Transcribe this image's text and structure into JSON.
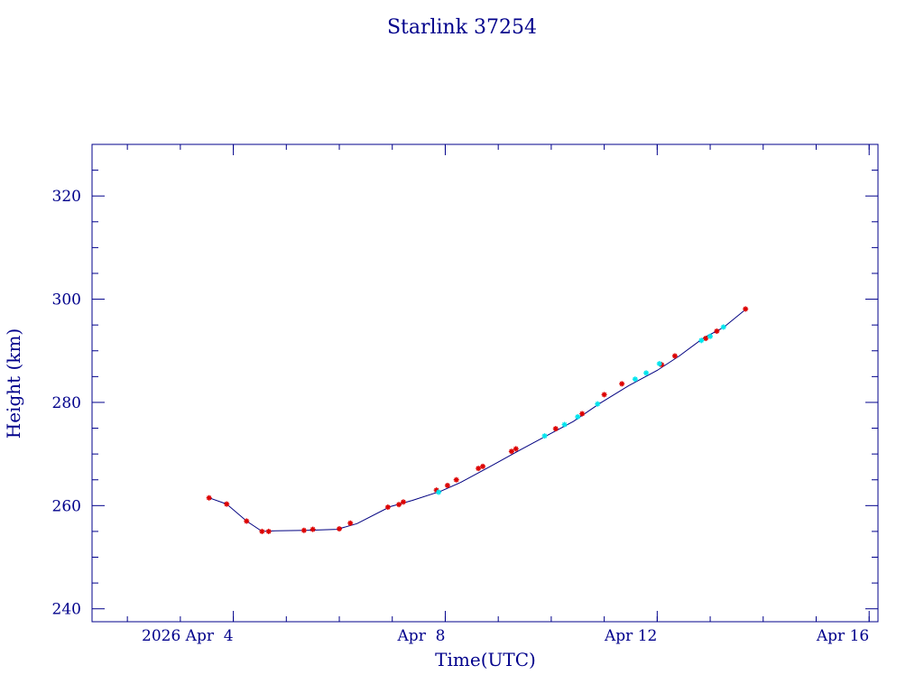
{
  "chart_data": {
    "type": "line",
    "title": "Starlink 37254",
    "xlabel": "Time(UTC)",
    "ylabel": "Height (km)",
    "x_domain": [
      "2026-04-01T08:00:00",
      "2026-04-16T04:00:00"
    ],
    "ylim": [
      237.5,
      330
    ],
    "x_ticks": [
      {
        "label": "2026 Apr  4",
        "date": "2026-04-04T00:00:00"
      },
      {
        "label": "Apr  8",
        "date": "2026-04-08T00:00:00"
      },
      {
        "label": "Apr 12",
        "date": "2026-04-12T00:00:00"
      },
      {
        "label": "Apr 16",
        "date": "2026-04-16T00:00:00"
      }
    ],
    "y_ticks": [
      240,
      260,
      280,
      300,
      320
    ],
    "colors": {
      "axes": "#00008b",
      "line": "#000080",
      "series_red": "#dd0000",
      "series_cyan": "#00e5ee"
    },
    "line_path": [
      {
        "date": "2026-04-03T13:00:00",
        "height": 261.5
      },
      {
        "date": "2026-04-03T21:00:00",
        "height": 260.3
      },
      {
        "date": "2026-04-04T06:00:00",
        "height": 257.0
      },
      {
        "date": "2026-04-04T13:00:00",
        "height": 255.0
      },
      {
        "date": "2026-04-04T19:00:00",
        "height": 255.1
      },
      {
        "date": "2026-04-05T09:00:00",
        "height": 255.2
      },
      {
        "date": "2026-04-05T23:00:00",
        "height": 255.4
      },
      {
        "date": "2026-04-06T08:00:00",
        "height": 256.5
      },
      {
        "date": "2026-04-06T23:00:00",
        "height": 259.8
      },
      {
        "date": "2026-04-07T09:00:00",
        "height": 261.0
      },
      {
        "date": "2026-04-07T22:00:00",
        "height": 262.8
      },
      {
        "date": "2026-04-08T07:00:00",
        "height": 264.5
      },
      {
        "date": "2026-04-08T20:00:00",
        "height": 267.5
      },
      {
        "date": "2026-04-09T10:00:00",
        "height": 270.8
      },
      {
        "date": "2026-04-09T23:00:00",
        "height": 273.8
      },
      {
        "date": "2026-04-10T10:00:00",
        "height": 276.3
      },
      {
        "date": "2026-04-10T22:00:00",
        "height": 279.8
      },
      {
        "date": "2026-04-11T11:00:00",
        "height": 283.2
      },
      {
        "date": "2026-04-12T00:00:00",
        "height": 286.2
      },
      {
        "date": "2026-04-12T10:00:00",
        "height": 289.0
      },
      {
        "date": "2026-04-12T21:00:00",
        "height": 292.5
      },
      {
        "date": "2026-04-13T06:00:00",
        "height": 294.5
      },
      {
        "date": "2026-04-13T16:00:00",
        "height": 298.0
      }
    ],
    "series": [
      {
        "color_key": "series_red",
        "points": [
          {
            "date": "2026-04-03T13:00:00",
            "height": 261.5
          },
          {
            "date": "2026-04-03T21:00:00",
            "height": 260.3
          },
          {
            "date": "2026-04-04T06:00:00",
            "height": 257.0
          },
          {
            "date": "2026-04-04T13:00:00",
            "height": 255.0
          },
          {
            "date": "2026-04-04T16:00:00",
            "height": 255.0
          },
          {
            "date": "2026-04-05T08:00:00",
            "height": 255.2
          },
          {
            "date": "2026-04-05T12:00:00",
            "height": 255.4
          },
          {
            "date": "2026-04-06T00:00:00",
            "height": 255.5
          },
          {
            "date": "2026-04-06T05:00:00",
            "height": 256.6
          },
          {
            "date": "2026-04-06T22:00:00",
            "height": 259.7
          },
          {
            "date": "2026-04-07T03:00:00",
            "height": 260.2
          },
          {
            "date": "2026-04-07T05:00:00",
            "height": 260.7
          },
          {
            "date": "2026-04-07T20:00:00",
            "height": 263.0
          },
          {
            "date": "2026-04-08T01:00:00",
            "height": 263.9
          },
          {
            "date": "2026-04-08T05:00:00",
            "height": 265.0
          },
          {
            "date": "2026-04-08T15:00:00",
            "height": 267.2
          },
          {
            "date": "2026-04-08T17:00:00",
            "height": 267.6
          },
          {
            "date": "2026-04-09T06:00:00",
            "height": 270.5
          },
          {
            "date": "2026-04-09T08:00:00",
            "height": 271.0
          },
          {
            "date": "2026-04-10T02:00:00",
            "height": 274.9
          },
          {
            "date": "2026-04-10T14:00:00",
            "height": 277.8
          },
          {
            "date": "2026-04-11T00:00:00",
            "height": 281.5
          },
          {
            "date": "2026-04-11T08:00:00",
            "height": 283.6
          },
          {
            "date": "2026-04-12T02:00:00",
            "height": 287.3
          },
          {
            "date": "2026-04-12T08:00:00",
            "height": 289.0
          },
          {
            "date": "2026-04-12T22:00:00",
            "height": 292.4
          },
          {
            "date": "2026-04-13T03:00:00",
            "height": 293.8
          },
          {
            "date": "2026-04-13T16:00:00",
            "height": 298.1
          }
        ]
      },
      {
        "color_key": "series_cyan",
        "points": [
          {
            "date": "2026-04-07T21:00:00",
            "height": 262.6
          },
          {
            "date": "2026-04-09T21:00:00",
            "height": 273.5
          },
          {
            "date": "2026-04-10T06:00:00",
            "height": 275.7
          },
          {
            "date": "2026-04-10T12:00:00",
            "height": 277.2
          },
          {
            "date": "2026-04-10T21:00:00",
            "height": 279.7
          },
          {
            "date": "2026-04-11T14:00:00",
            "height": 284.5
          },
          {
            "date": "2026-04-11T19:00:00",
            "height": 285.7
          },
          {
            "date": "2026-04-12T01:00:00",
            "height": 287.5
          },
          {
            "date": "2026-04-12T20:00:00",
            "height": 292.0
          },
          {
            "date": "2026-04-13T00:00:00",
            "height": 292.8
          },
          {
            "date": "2026-04-13T06:00:00",
            "height": 294.6
          }
        ]
      }
    ]
  }
}
